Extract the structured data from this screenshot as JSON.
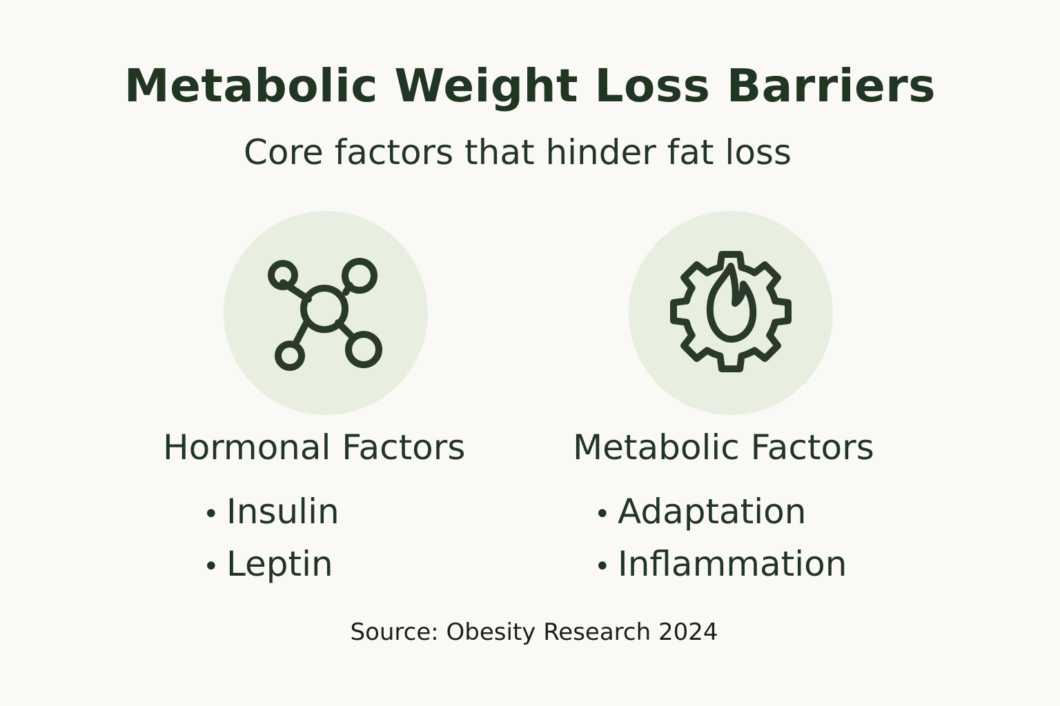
{
  "title": "Metabolic Weight Loss Barriers",
  "subtitle": "Core factors that hinder fat loss",
  "columns": [
    {
      "icon": "molecule-icon",
      "heading": "Hormonal Factors",
      "items": [
        "Insulin",
        "Leptin"
      ]
    },
    {
      "icon": "gear-flame-icon",
      "heading": "Metabolic Factors",
      "items": [
        "Adaptation",
        "Inflammation"
      ]
    }
  ],
  "source": "Source: Obesity Research 2024",
  "colors": {
    "background": "#faf9f6",
    "text": "#213622",
    "icon_circle": "#e8efe0",
    "icon_stroke": "#2a3a2a"
  }
}
